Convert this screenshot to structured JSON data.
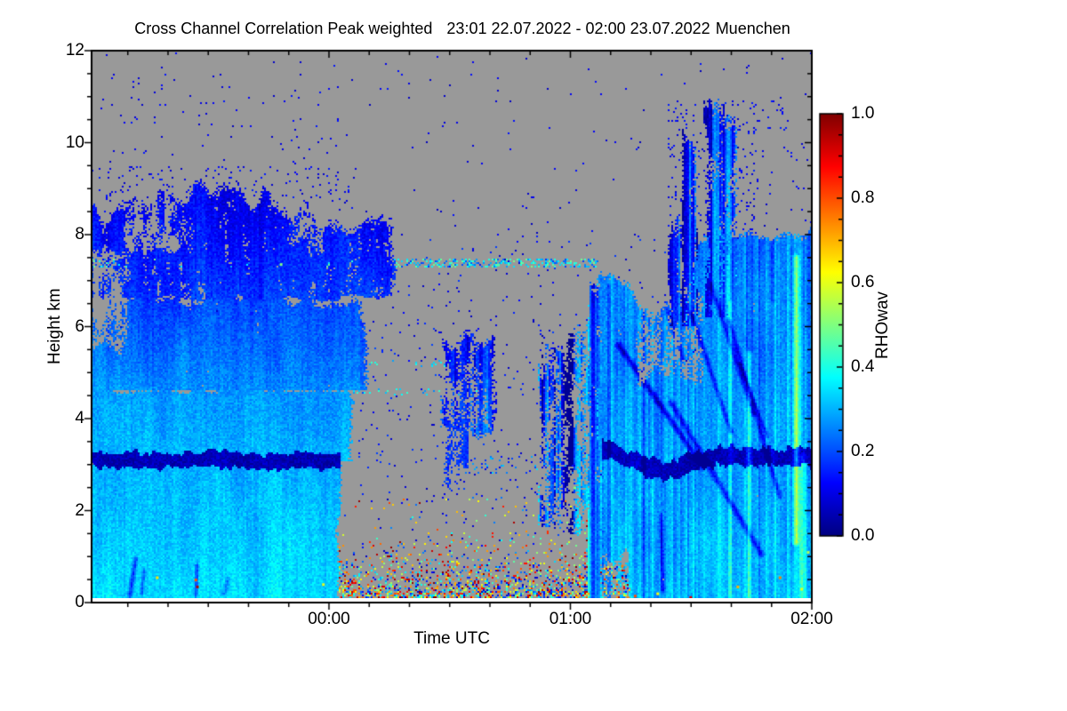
{
  "page": {
    "background": "#ffffff"
  },
  "chart_data": {
    "type": "heatmap",
    "title": "Cross Channel Correlation Peak weighted",
    "period": "23:01 22.07.2022 - 02:00 23.07.2022",
    "station": "Muenchen",
    "xlabel": "Time UTC",
    "ylabel": "Height km",
    "x_axis": {
      "start_time": "23:01",
      "range_minutes": [
        0,
        179
      ],
      "major_ticks": [
        {
          "label": "00:00",
          "minute": 59
        },
        {
          "label": "01:00",
          "minute": 119
        },
        {
          "label": "02:00",
          "minute": 179
        }
      ],
      "minor_tick_every_minutes": 10
    },
    "y_axis": {
      "range_km": [
        0,
        12
      ],
      "major_ticks": [
        0,
        2,
        4,
        6,
        8,
        10,
        12
      ],
      "minor_tick_km": 0.5
    },
    "colorbar": {
      "label": "RHOwav",
      "range": [
        0,
        1
      ],
      "tick_labels": [
        "0.0",
        "0.2",
        "0.4",
        "0.6",
        "0.8",
        "1.0"
      ],
      "minor_tick": 0.05,
      "colormap": "jet"
    },
    "no_data_color": "#999999",
    "field": {
      "units": "RHOwav correlation (0-1), null = no data (gray)",
      "regions": [
        {
          "n": "bl-cyan-left",
          "t": [
            0,
            61.5
          ],
          "h": [
            0,
            3.08
          ],
          "v": [
            0.34,
            0.3
          ],
          "ej": [
            0,
            1.2,
            0.05,
            0.1
          ],
          "st": 0.05
        },
        {
          "n": "mid-cyan-left",
          "t": [
            0,
            63.5
          ],
          "h": [
            3.08,
            4.62
          ],
          "v": [
            0.31,
            0.28
          ],
          "ej": [
            0,
            2,
            0,
            0.12
          ],
          "fg": 0.02,
          "st": 0.04
        },
        {
          "n": "upper-blue-left",
          "t": [
            0,
            68
          ],
          "h": [
            4.62,
            6.62
          ],
          "v": [
            0.27,
            0.19
          ],
          "ej": [
            0,
            2.6,
            0,
            0.25
          ],
          "fg": 0.07,
          "st": 0.05
        },
        {
          "n": "cloud-left",
          "t": [
            0,
            74
          ],
          "h": [
            6.62,
            8.6
          ],
          "v": [
            0.18,
            0.12
          ],
          "ej": [
            0,
            3,
            0.1,
            0.4
          ],
          "fg": 0.2,
          "st": 0.05,
          "tp": [
            [
              0,
              8.45
            ],
            [
              8,
              8.5
            ],
            [
              15,
              8.7
            ],
            [
              25,
              8.95
            ],
            [
              40,
              8.8
            ],
            [
              50,
              8.6
            ],
            [
              56,
              8.35
            ],
            [
              64,
              8.3
            ],
            [
              70,
              8.35
            ],
            [
              74,
              8.05
            ]
          ]
        },
        {
          "n": "gray-hole-left-edge",
          "t": [
            0,
            8
          ],
          "h": [
            5.55,
            7.6
          ],
          "v": null,
          "ej": [
            0,
            2,
            0.3,
            0.3
          ],
          "fg": 0.38
        },
        {
          "n": "gray-notch-1",
          "t": [
            9,
            24
          ],
          "h": [
            7.7,
            8.9
          ],
          "v": null,
          "ej": [
            1.5,
            2,
            0.25,
            0
          ],
          "fg": 0.45
        },
        {
          "n": "gray-notch-2",
          "t": [
            49,
            57.5
          ],
          "h": [
            7.75,
            8.9
          ],
          "v": null,
          "ej": [
            1,
            1,
            0.25,
            0
          ],
          "fg": 0.5
        },
        {
          "n": "dark-layer-left",
          "t": [
            0,
            62
          ],
          "cp": [
            [
              0,
              3.1
            ],
            [
              15,
              3.08
            ],
            [
              30,
              3.13
            ],
            [
              45,
              3.07
            ],
            [
              62,
              3.1
            ]
          ],
          "hw": 0.17,
          "wob": 0.05,
          "v": 0.055
        },
        {
          "n": "mid-cloud-patch",
          "t": [
            87.5,
            101
          ],
          "h": [
            3.75,
            5.75
          ],
          "v": [
            0.18,
            0.15
          ],
          "ej": [
            1.5,
            1.5,
            0.3,
            0.45
          ],
          "fg": 0.4,
          "st": 0.2
        },
        {
          "n": "mid-cloud-tail",
          "t": [
            88,
            93.5
          ],
          "h": [
            2.55,
            4.0
          ],
          "v": 0.16,
          "ej": [
            0.6,
            0.6,
            0.25,
            0
          ],
          "fg": 0.52
        },
        {
          "n": "virga-plumes-mid",
          "t": [
            111.5,
            126
          ],
          "h": [
            1.6,
            5.8
          ],
          "v": [
            0.22,
            0.16
          ],
          "ej": [
            1,
            1,
            0.3,
            0.55
          ],
          "fg": 0.5,
          "st": 0.55
        },
        {
          "n": "bridge-column",
          "t": [
            123.5,
            127.5
          ],
          "h": [
            0.1,
            6.9
          ],
          "v": [
            0.3,
            0.2
          ],
          "ej": [
            0.6,
            0.6,
            0,
            0.45
          ],
          "fg": 0.22,
          "st": 0.3
        },
        {
          "n": "right-solid",
          "t": [
            126.5,
            179.5
          ],
          "h": [
            0,
            8
          ],
          "v": [
            0.32,
            0.24
          ],
          "ej": [
            1.2,
            0,
            0,
            0.3
          ],
          "fg": 0.05,
          "st": 0.17,
          "tp": [
            [
              126.5,
              7.3
            ],
            [
              131,
              6.95
            ],
            [
              136,
              6.6
            ],
            [
              141,
              6.35
            ],
            [
              146,
              6.4
            ],
            [
              149,
              6.9
            ],
            [
              151,
              7.7
            ],
            [
              153,
              8.05
            ],
            [
              162,
              8.1
            ],
            [
              170,
              8.0
            ],
            [
              179.5,
              8.1
            ]
          ]
        },
        {
          "n": "right-bottom-gap",
          "t": [
            127,
            133.5
          ],
          "h": [
            0.1,
            1.0
          ],
          "v": null,
          "ej": [
            0.5,
            0.5,
            0,
            0.3
          ],
          "fg": 0.35
        },
        {
          "n": "right-upper-frag",
          "t": [
            136,
            152
          ],
          "h": [
            4.9,
            6.7
          ],
          "v": null,
          "ej": [
            1,
            1,
            0.3,
            0.3
          ],
          "fg": 0.5
        },
        {
          "n": "plume-a",
          "t": [
            143.6,
            146.2
          ],
          "h": [
            6.0,
            8.45
          ],
          "v": [
            0.18,
            0.14
          ],
          "ej": [
            0.5,
            0.5,
            0,
            0.5
          ],
          "fg": 0.3,
          "st": 0.3
        },
        {
          "n": "plume-b",
          "t": [
            146.6,
            150.6
          ],
          "h": [
            6.0,
            9.95
          ],
          "v": [
            0.18,
            0.13
          ],
          "ej": [
            0.7,
            0.7,
            0,
            0.55
          ],
          "fg": 0.3,
          "st": 0.35
        },
        {
          "n": "plume-c",
          "t": [
            152.6,
            159.8
          ],
          "h": [
            6.2,
            10.5
          ],
          "v": [
            0.19,
            0.13
          ],
          "ej": [
            1,
            1,
            0,
            0.6
          ],
          "fg": 0.32,
          "st": 0.4
        },
        {
          "n": "dark-layer-right",
          "t": [
            127,
            179.5
          ],
          "cp": [
            [
              127,
              3.35
            ],
            [
              133,
              3.15
            ],
            [
              138,
              2.95
            ],
            [
              142,
              2.85
            ],
            [
              147,
              2.95
            ],
            [
              151,
              3.1
            ],
            [
              156,
              3.18
            ],
            [
              179.5,
              3.16
            ]
          ],
          "hw": 0.19,
          "wob": 0.06,
          "v": 0.055
        }
      ],
      "streaks": [
        {
          "t0": 131,
          "h0": 5.6,
          "t1": 152,
          "h1": 2.95,
          "w": 5,
          "dv": -0.15
        },
        {
          "t0": 144,
          "h0": 4.35,
          "t1": 166.5,
          "h1": 1.05,
          "w": 5,
          "dv": -0.13
        },
        {
          "t0": 149,
          "h0": 6.3,
          "t1": 159,
          "h1": 3.7,
          "w": 4,
          "dv": -0.11
        },
        {
          "t0": 154,
          "h0": 6.9,
          "t1": 164.5,
          "h1": 4.1,
          "w": 4,
          "dv": -0.11
        },
        {
          "t0": 158.5,
          "h0": 6.1,
          "t1": 171,
          "h1": 2.3,
          "w": 4,
          "dv": -0.12
        },
        {
          "t0": 140.5,
          "h0": 7.0,
          "t1": 147,
          "h1": 5.3,
          "w": 4,
          "dv": -0.1
        },
        {
          "t0": 161,
          "h0": 5.2,
          "t1": 168,
          "h1": 3.6,
          "w": 3,
          "dv": -0.1
        },
        {
          "t0": 142,
          "h0": 0.25,
          "t1": 141.5,
          "h1": 1.9,
          "w": 3,
          "dv": -0.12
        },
        {
          "t0": 9.5,
          "h0": 0.15,
          "t1": 11,
          "h1": 0.95,
          "w": 4,
          "dv": -0.13
        },
        {
          "t0": 12.5,
          "h0": 0.2,
          "t1": 13,
          "h1": 0.7,
          "w": 3,
          "dv": -0.1
        },
        {
          "t0": 25.9,
          "h0": 0.15,
          "t1": 26.2,
          "h1": 0.8,
          "w": 3,
          "dv": -0.12
        },
        {
          "t0": 33,
          "h0": 0.2,
          "t1": 34,
          "h1": 0.5,
          "w": 4,
          "dv": -0.08
        },
        {
          "t0": 163.4,
          "h0": 0.1,
          "t1": 163.4,
          "h1": 5.4,
          "w": 5,
          "dv": 0.13
        },
        {
          "t0": 175.2,
          "h0": 1.3,
          "t1": 175.2,
          "h1": 7.5,
          "w": 5,
          "dv": 0.17
        },
        {
          "t0": 176.8,
          "h0": 0.1,
          "t1": 176.8,
          "h1": 3.2,
          "w": 4,
          "dv": 0.09
        },
        {
          "t0": 169.3,
          "h0": 0.1,
          "t1": 169.3,
          "h1": 6.5,
          "w": 4,
          "dv": 0.05
        },
        {
          "t0": 158.9,
          "h0": 0.1,
          "t1": 158.9,
          "h1": 6.5,
          "w": 4,
          "dv": 0.05
        },
        {
          "t0": 137.2,
          "h0": 0.1,
          "t1": 137.2,
          "h1": 6.4,
          "w": 4,
          "dv": -0.08
        },
        {
          "t0": 128.6,
          "h0": 0.1,
          "t1": 128.6,
          "h1": 6.9,
          "w": 3,
          "dv": -0.09
        },
        {
          "t0": 142.6,
          "h0": 0.1,
          "t1": 142.6,
          "h1": 2.6,
          "w": 3,
          "dv": -0.07
        }
      ],
      "speckles": [
        {
          "n": "pbl-multicolor-noise",
          "t": [
            61.5,
            126.5
          ],
          "h": [
            0.1,
            2.3
          ],
          "exp": [
            0.7,
            0.5,
            0.025
          ],
          "v": [
            0.05,
            1.0
          ]
        },
        {
          "n": "pbl-noise-right-edge",
          "t": [
            126,
            134
          ],
          "h": [
            0.1,
            0.8
          ],
          "p": 0.3,
          "v": [
            0.05,
            1.0
          ]
        },
        {
          "n": "artifact-line-7km",
          "t": [
            0,
            126
          ],
          "h": [
            7.3,
            7.46
          ],
          "p": 0.38,
          "v": [
            0.18,
            0.5
          ]
        },
        {
          "n": "dotted-line-5km",
          "t": [
            61.5,
            96
          ],
          "h": [
            5.12,
            5.28
          ],
          "p": 0.12,
          "v": [
            0.25,
            0.45
          ]
        },
        {
          "n": "dotted-line-4km",
          "t": [
            61.5,
            96
          ],
          "h": [
            4.52,
            4.66
          ],
          "p": 0.09,
          "v": [
            0.25,
            0.45
          ]
        },
        {
          "n": "dashes-3km",
          "t": [
            93,
            122
          ],
          "h": [
            2.82,
            3.2
          ],
          "p": 0.1,
          "v": [
            0.08,
            0.35
          ]
        },
        {
          "n": "left-cloud-top-fringe",
          "t": [
            0,
            66
          ],
          "h": [
            8.4,
            9.5
          ],
          "p": 0.05,
          "v": [
            0.07,
            0.16
          ]
        },
        {
          "n": "mid-sparse",
          "t": [
            66,
            143
          ],
          "h": [
            2.2,
            8.0
          ],
          "p": 0.012,
          "v": [
            0.07,
            0.2
          ]
        },
        {
          "n": "plume-fringe",
          "t": [
            143,
            166
          ],
          "h": [
            6.5,
            10.9
          ],
          "p": 0.06,
          "v": [
            0.07,
            0.16
          ]
        },
        {
          "n": "topleft-sparse",
          "t": [
            0,
            61.5
          ],
          "h": [
            9.5,
            11.5
          ],
          "p": 0.008,
          "v": [
            0.07,
            0.15
          ]
        },
        {
          "n": "ambient-sparse",
          "t": [
            0,
            179.5
          ],
          "h": [
            0.1,
            12
          ],
          "p": 0.004,
          "v": [
            0.06,
            0.15
          ]
        },
        {
          "n": "topright-cluster",
          "t": [
            167,
            174
          ],
          "h": [
            10.2,
            11.0
          ],
          "p": 0.03,
          "v": [
            0.09,
            0.16
          ]
        },
        {
          "n": "right-above-sparse",
          "t": [
            153,
            179.5
          ],
          "h": [
            8.1,
            10.0
          ],
          "p": 0.015,
          "v": [
            0.07,
            0.15
          ]
        }
      ],
      "hot_pixels": [
        [
          25.8,
          0.5,
          0.8
        ],
        [
          16.2,
          0.55,
          0.65
        ],
        [
          26.2,
          0.35,
          0.95
        ],
        [
          57.5,
          0.4,
          0.6
        ],
        [
          131.8,
          0.8,
          0.75
        ],
        [
          135,
          0.15,
          0.8
        ],
        [
          140.6,
          0.2,
          0.62
        ],
        [
          148.8,
          0.12,
          0.9
        ],
        [
          160.5,
          0.35,
          0.7
        ],
        [
          171,
          0.55,
          0.75
        ],
        [
          176.4,
          0.3,
          0.6
        ],
        [
          178,
          1.1,
          0.55
        ],
        [
          120,
          2.5,
          0.5
        ],
        [
          101,
          7.35,
          0.45
        ],
        [
          47,
          7.36,
          0.5
        ]
      ]
    }
  }
}
